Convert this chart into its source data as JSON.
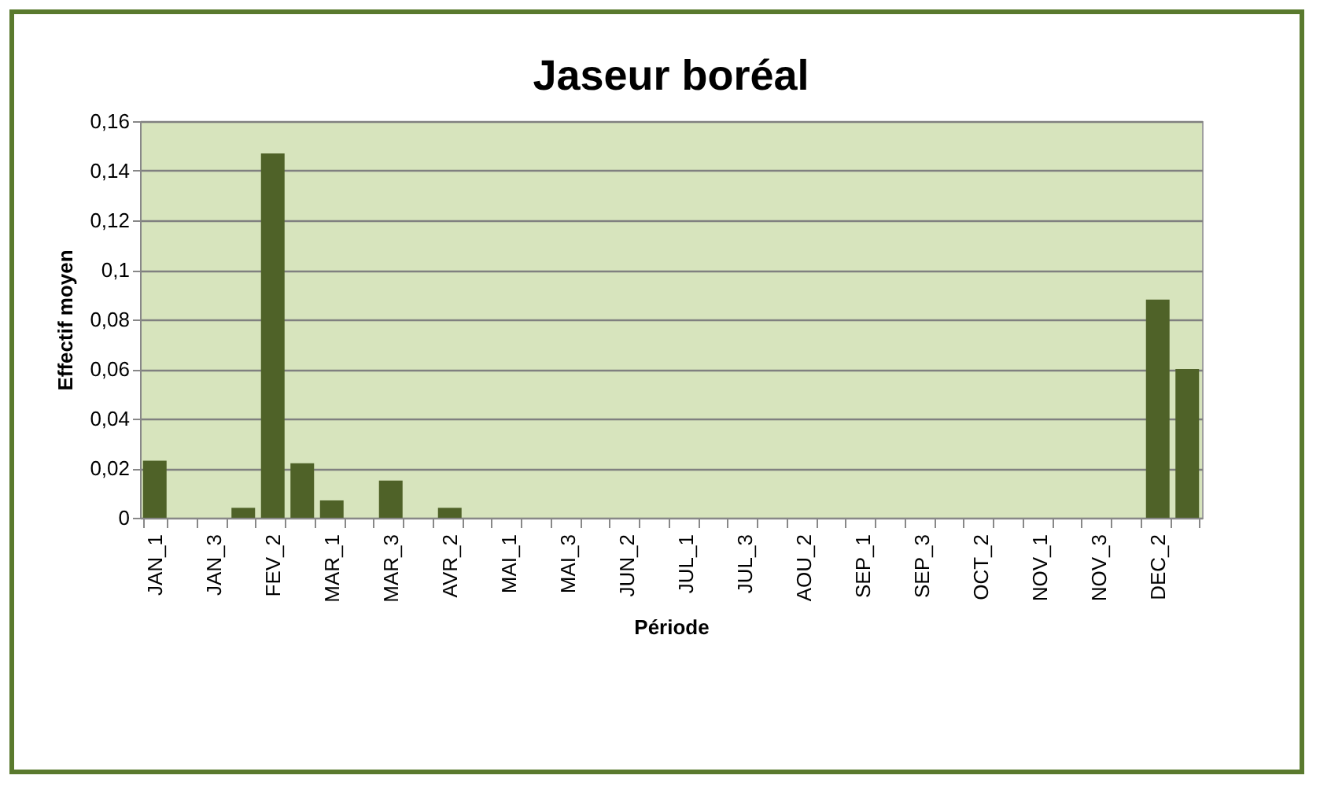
{
  "chart_data": {
    "type": "bar",
    "title": "Jaseur boréal",
    "xlabel": "Période",
    "ylabel": "Effectif moyen",
    "categories": [
      "JAN_1",
      null,
      "JAN_3",
      null,
      "FEV_2",
      null,
      "MAR_1",
      null,
      "MAR_3",
      null,
      "AVR_2",
      null,
      "MAI_1",
      null,
      "MAI_3",
      null,
      "JUN_2",
      null,
      "JUL_1",
      null,
      "JUL_3",
      null,
      "AOU_2",
      null,
      "SEP_1",
      null,
      "SEP_3",
      null,
      "OCT_2",
      null,
      "NOV_1",
      null,
      "NOV_3",
      null,
      "DEC_2",
      null
    ],
    "values": [
      0.023,
      0,
      0,
      0.004,
      0.147,
      0.022,
      0.007,
      0,
      0.015,
      0,
      0.004,
      0,
      0,
      0,
      0,
      0,
      0,
      0,
      0,
      0,
      0,
      0,
      0,
      0,
      0,
      0,
      0,
      0,
      0,
      0,
      0,
      0,
      0,
      0,
      0.088,
      0.06
    ],
    "color": "#4f6228",
    "ylim": [
      0,
      0.16
    ],
    "yticks": [
      0,
      {
        "value": 0.02,
        "label": "0,02"
      },
      {
        "value": 0.04,
        "label": "0,04"
      },
      {
        "value": 0.06,
        "label": "0,06"
      },
      {
        "value": 0.08,
        "label": "0,08"
      },
      {
        "value": 0.1,
        "label": "0,1"
      },
      {
        "value": 0.12,
        "label": "0,12"
      },
      {
        "value": 0.14,
        "label": "0,14"
      },
      {
        "value": 0.16,
        "label": "0,16"
      }
    ],
    "grid": true,
    "legend": false
  }
}
